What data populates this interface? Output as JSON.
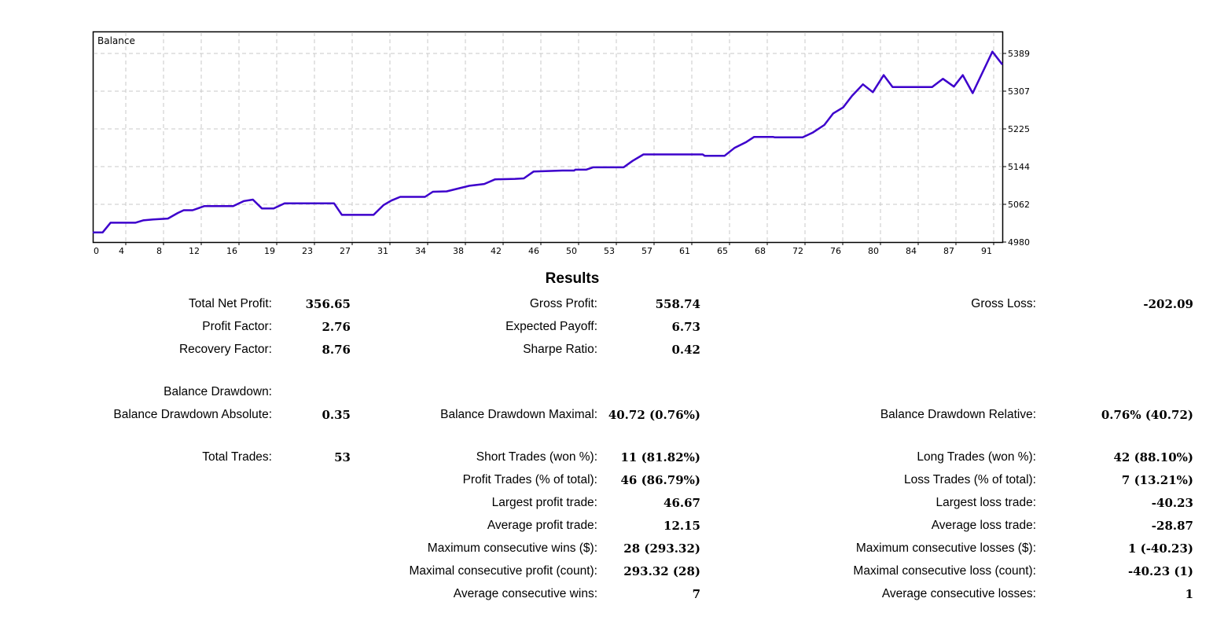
{
  "chart_data": {
    "type": "line",
    "title": "Balance",
    "xlabel": "",
    "ylabel": "",
    "xlim": [
      0,
      92
    ],
    "ylim": [
      4980,
      5389
    ],
    "grid": true,
    "line_color": "#3d00cc",
    "x_tick_labels": [
      "0",
      "4",
      "8",
      "12",
      "16",
      "19",
      "23",
      "27",
      "31",
      "34",
      "38",
      "42",
      "46",
      "50",
      "53",
      "57",
      "61",
      "65",
      "68",
      "72",
      "76",
      "80",
      "84",
      "87",
      "91"
    ],
    "y_tick_labels": [
      "4980",
      "5062",
      "5144",
      "5225",
      "5307",
      "5389"
    ],
    "series": [
      {
        "name": "Balance",
        "x": [
          0,
          1,
          1.8,
          4.3,
          5.1,
          6.1,
          7.6,
          8.6,
          9.2,
          10.1,
          11.3,
          14.2,
          15.3,
          16.2,
          17.1,
          18.3,
          19.4,
          24.4,
          25.2,
          28.4,
          29.4,
          30.2,
          31.1,
          33.6,
          34.4,
          35.8,
          38.1,
          39.6,
          40.7,
          42.7,
          43.6,
          44.6,
          47.5,
          48.7,
          48.8,
          49.9,
          50.6,
          53.7,
          54.6,
          55.7,
          61.7,
          61.9,
          63.9,
          64.9,
          66.1,
          66.9,
          68.8,
          69.0,
          71.8,
          72.8,
          74.0,
          74.9,
          75.9,
          76.8,
          77.9,
          78.9,
          80.0,
          80.9,
          84.9,
          86.0,
          87.1,
          88.0,
          89.0,
          91.0,
          92.0
        ],
        "y": [
          5001,
          5001,
          5022,
          5022,
          5027,
          5029,
          5031,
          5043,
          5049,
          5049,
          5058,
          5058,
          5069,
          5072,
          5053,
          5053,
          5064,
          5064,
          5039,
          5039,
          5060,
          5070,
          5078,
          5078,
          5089,
          5090,
          5102,
          5106,
          5116,
          5117,
          5118,
          5133,
          5135,
          5135,
          5137,
          5137,
          5142,
          5142,
          5156,
          5170,
          5170,
          5167,
          5167,
          5184,
          5197,
          5208,
          5208,
          5207,
          5207,
          5217,
          5234,
          5259,
          5272,
          5297,
          5322,
          5305,
          5342,
          5316,
          5316,
          5334,
          5317,
          5342,
          5303,
          5393,
          5365
        ]
      }
    ]
  },
  "results": {
    "title": "Results",
    "rows": [
      [
        {
          "label": "Total Net Profit:",
          "value": "356.65"
        },
        {
          "label": "Gross Profit:",
          "value": "558.74"
        },
        {
          "label": "Gross Loss:",
          "value": "-202.09"
        }
      ],
      [
        {
          "label": "Profit Factor:",
          "value": "2.76"
        },
        {
          "label": "Expected Payoff:",
          "value": "6.73"
        },
        null
      ],
      [
        {
          "label": "Recovery Factor:",
          "value": "8.76"
        },
        {
          "label": "Sharpe Ratio:",
          "value": "0.42"
        },
        null
      ],
      [
        {
          "label": "Balance Drawdown:",
          "value": ""
        },
        null,
        null
      ],
      [
        {
          "label": "Balance Drawdown Absolute:",
          "value": "0.35"
        },
        {
          "label": "Balance Drawdown Maximal:",
          "value": "40.72 (0.76%)"
        },
        {
          "label": "Balance Drawdown Relative:",
          "value": "0.76% (40.72)"
        }
      ],
      [
        {
          "label": "Total Trades:",
          "value": "53"
        },
        {
          "label": "Short Trades (won %):",
          "value": "11 (81.82%)"
        },
        {
          "label": "Long Trades (won %):",
          "value": "42 (88.10%)"
        }
      ],
      [
        null,
        {
          "label": "Profit Trades (% of total):",
          "value": "46 (86.79%)"
        },
        {
          "label": "Loss Trades (% of total):",
          "value": "7 (13.21%)"
        }
      ],
      [
        null,
        {
          "label": "Largest profit trade:",
          "value": "46.67"
        },
        {
          "label": "Largest loss trade:",
          "value": "-40.23"
        }
      ],
      [
        null,
        {
          "label": "Average profit trade:",
          "value": "12.15"
        },
        {
          "label": "Average loss trade:",
          "value": "-28.87"
        }
      ],
      [
        null,
        {
          "label": "Maximum consecutive wins ($):",
          "value": "28 (293.32)"
        },
        {
          "label": "Maximum consecutive losses ($):",
          "value": "1 (-40.23)"
        }
      ],
      [
        null,
        {
          "label": "Maximal consecutive profit (count):",
          "value": "293.32 (28)"
        },
        {
          "label": "Maximal consecutive loss (count):",
          "value": "-40.23 (1)"
        }
      ],
      [
        null,
        {
          "label": "Average consecutive wins:",
          "value": "7"
        },
        {
          "label": "Average consecutive losses:",
          "value": "1"
        }
      ]
    ]
  }
}
